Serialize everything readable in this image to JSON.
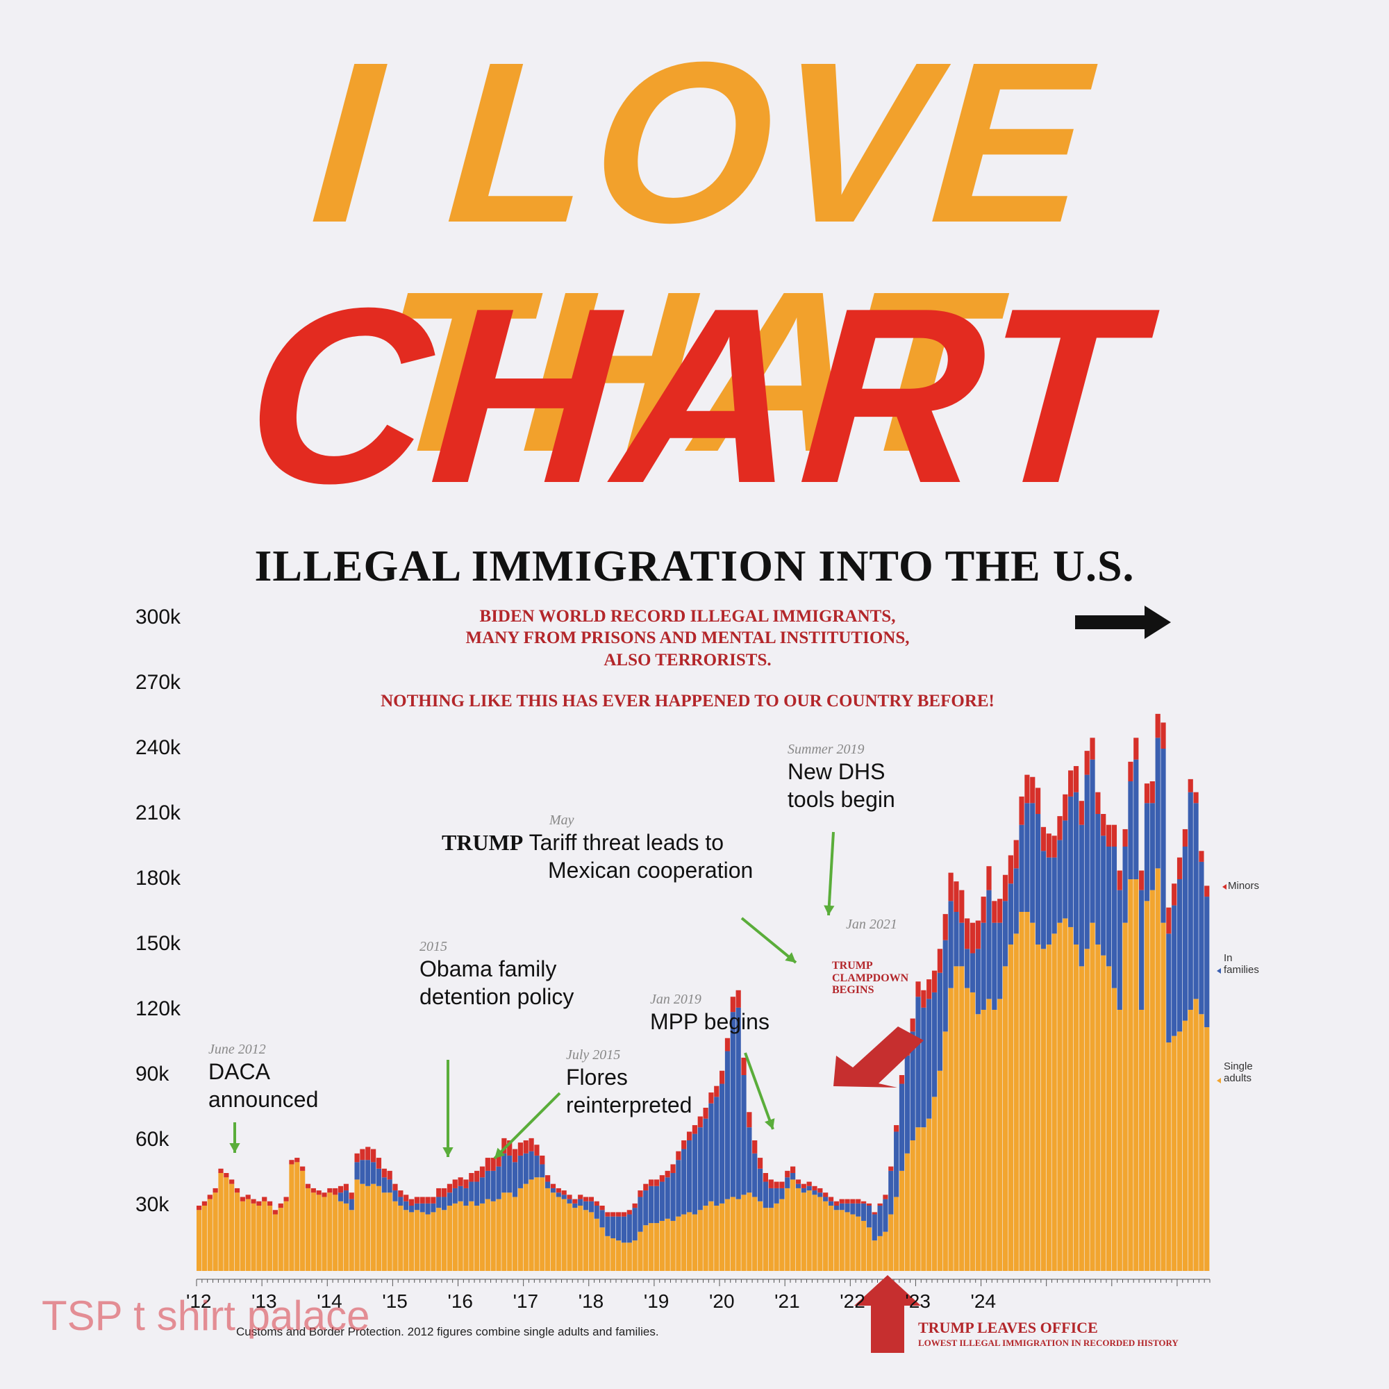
{
  "headline": {
    "line1": "I LOVE THAT",
    "line2": "CHART",
    "line1_color": "#f2a12c",
    "line2_color": "#e32b20"
  },
  "chart_title": "ILLEGAL IMMIGRATION INTO THE U.S.",
  "notes": {
    "biden_line1": "BIDEN WORLD RECORD ILLEGAL IMMIGRANTS,",
    "biden_line2": "MANY FROM PRISONS AND MENTAL INSTITUTIONS,",
    "biden_line3": "ALSO TERRORISTS.",
    "nothing_like": "NOTHING LIKE THIS HAS EVER HAPPENED TO OUR COUNTRY BEFORE!",
    "trump_clampdown_1": "TRUMP",
    "trump_clampdown_2": "CLAMPDOWN",
    "trump_clampdown_3": "BEGINS",
    "trump_leaves": "TRUMP LEAVES OFFICE",
    "lowest": "LOWEST ILLEGAL IMMIGRATION IN RECORDED HISTORY"
  },
  "annotations": {
    "daca_date": "June 2012",
    "daca_1": "DACA",
    "daca_2": "announced",
    "obama_date": "2015",
    "obama_1": "Obama family",
    "obama_2": "detention policy",
    "flores_date": "July 2015",
    "flores_1": "Flores",
    "flores_2": "reinterpreted",
    "mpp_date": "Jan 2019",
    "mpp_1": "MPP begins",
    "tariff_date": "May",
    "tariff_trump": "TRUMP",
    "tariff_1": "Tariff threat leads to",
    "tariff_2": "Mexican cooperation",
    "dhs_date": "Summer 2019",
    "dhs_1": "New DHS",
    "dhs_2": "tools begin",
    "jan2021": "Jan 2021"
  },
  "legend": {
    "minors": "Minors",
    "families_1": "In",
    "families_2": "families",
    "singles_1": "Single",
    "singles_2": "adults"
  },
  "source": "Customs and Border Protection. 2012 figures combine single adults and families.",
  "watermark": "TSP t shirt palace",
  "colors": {
    "single_adults": "#f2a52f",
    "families": "#3a5fb0",
    "minors": "#d6302a",
    "arrow_green": "#5aad3a",
    "arrow_red": "#c62f2f",
    "note_red": "#b3262a"
  },
  "chart_data": {
    "type": "bar",
    "stacked": true,
    "title": "ILLEGAL IMMIGRATION INTO THE U.S.",
    "ylim": [
      0,
      300000
    ],
    "yticks": [
      "30k",
      "60k",
      "90k",
      "120k",
      "150k",
      "180k",
      "210k",
      "240k",
      "270k",
      "300k"
    ],
    "xticks": [
      "'12",
      "'13",
      "'14",
      "'15",
      "'16",
      "'17",
      "'18",
      "'19",
      "'20",
      "'21",
      "'22",
      "'23",
      "'24"
    ],
    "x_start": "2012-01",
    "x_end": "2024-03",
    "series": [
      {
        "name": "Minors",
        "color": "#d6302a"
      },
      {
        "name": "In families",
        "color": "#3a5fb0"
      },
      {
        "name": "Single adults",
        "color": "#f2a52f"
      }
    ],
    "months_single_adults": [
      28000,
      30000,
      33000,
      36000,
      45000,
      43000,
      40000,
      36000,
      32000,
      33000,
      31000,
      30000,
      32000,
      30000,
      26000,
      29000,
      32000,
      49000,
      50000,
      46000,
      38000,
      36000,
      35000,
      34000,
      36000,
      35000,
      32000,
      31000,
      28000,
      42000,
      40000,
      39000,
      40000,
      39000,
      36000,
      36000,
      32000,
      30000,
      28000,
      27000,
      28000,
      27000,
      26000,
      27000,
      29000,
      28000,
      30000,
      31000,
      32000,
      30000,
      32000,
      30000,
      31000,
      33000,
      32000,
      33000,
      36000,
      36000,
      34000,
      38000,
      40000,
      42000,
      43000,
      43000,
      38000,
      36000,
      34000,
      33000,
      31000,
      29000,
      30000,
      28000,
      27000,
      24000,
      20000,
      16000,
      15000,
      14000,
      13000,
      13000,
      14000,
      18000,
      21000,
      22000,
      22000,
      23000,
      24000,
      23000,
      25000,
      26000,
      27000,
      26000,
      28000,
      30000,
      32000,
      30000,
      31000,
      33000,
      34000,
      33000,
      35000,
      36000,
      34000,
      32000,
      29000,
      29000,
      31000,
      33000,
      38000,
      42000,
      38000,
      36000,
      37000,
      35000,
      34000,
      32000,
      30000,
      28000,
      28000,
      27000,
      26000,
      25000,
      23000,
      20000,
      14000,
      16000,
      18000,
      26000,
      34000,
      46000,
      54000,
      60000,
      66000,
      66000,
      70000,
      80000,
      92000,
      110000,
      130000,
      140000,
      140000,
      130000,
      128000,
      118000,
      120000,
      125000,
      120000,
      125000,
      140000,
      150000,
      155000,
      165000,
      165000,
      160000,
      150000,
      148000,
      150000,
      155000,
      160000,
      162000,
      158000,
      150000,
      140000,
      148000,
      160000,
      150000,
      145000,
      140000,
      130000,
      120000,
      160000,
      180000,
      180000,
      120000,
      170000,
      175000,
      185000,
      160000,
      105000,
      108000,
      110000,
      115000,
      120000,
      125000,
      118000,
      112000
    ],
    "months_families": [
      0,
      0,
      0,
      0,
      0,
      0,
      0,
      0,
      0,
      0,
      0,
      0,
      0,
      0,
      0,
      0,
      0,
      0,
      0,
      0,
      0,
      0,
      0,
      0,
      0,
      0,
      4000,
      6000,
      5000,
      8000,
      11000,
      12000,
      10000,
      8000,
      7000,
      6000,
      5000,
      4000,
      4000,
      3000,
      3000,
      4000,
      5000,
      4000,
      5000,
      6000,
      6000,
      7000,
      7000,
      8000,
      9000,
      11000,
      12000,
      13000,
      14000,
      15000,
      18000,
      17000,
      16000,
      15000,
      14000,
      13000,
      10000,
      6000,
      3000,
      2000,
      2000,
      2000,
      2000,
      2000,
      3000,
      4000,
      5000,
      6000,
      8000,
      9000,
      10000,
      11000,
      12000,
      13000,
      15000,
      16000,
      16000,
      17000,
      17000,
      18000,
      19000,
      22000,
      26000,
      30000,
      33000,
      37000,
      38000,
      40000,
      45000,
      50000,
      55000,
      68000,
      85000,
      88000,
      55000,
      30000,
      20000,
      15000,
      12000,
      9000,
      7000,
      5000,
      5000,
      3000,
      2000,
      2000,
      2000,
      2000,
      2000,
      2000,
      2000,
      2000,
      3000,
      4000,
      5000,
      6000,
      8000,
      10000,
      12000,
      14000,
      15000,
      20000,
      30000,
      40000,
      45000,
      50000,
      60000,
      55000,
      55000,
      48000,
      45000,
      42000,
      40000,
      25000,
      20000,
      18000,
      18000,
      30000,
      40000,
      50000,
      40000,
      35000,
      30000,
      28000,
      30000,
      40000,
      50000,
      55000,
      60000,
      45000,
      40000,
      35000,
      38000,
      45000,
      60000,
      70000,
      65000,
      80000,
      75000,
      60000,
      55000,
      55000,
      65000,
      55000,
      35000,
      45000,
      55000,
      55000,
      45000,
      40000,
      60000,
      80000,
      50000,
      60000,
      70000,
      80000,
      100000,
      90000,
      70000,
      60000,
      55000,
      50000,
      48000,
      45000,
      40000
    ],
    "months_minors": [
      2000,
      2000,
      2000,
      2000,
      2000,
      2000,
      2000,
      2000,
      2000,
      2000,
      2000,
      2000,
      2000,
      2000,
      2000,
      2000,
      2000,
      2000,
      2000,
      2000,
      2000,
      2000,
      2000,
      2000,
      2000,
      3000,
      3000,
      3000,
      3000,
      4000,
      5000,
      6000,
      6000,
      5000,
      4000,
      4000,
      3000,
      3000,
      3000,
      3000,
      3000,
      3000,
      3000,
      3000,
      4000,
      4000,
      4000,
      4000,
      4000,
      4000,
      4000,
      5000,
      5000,
      6000,
      6000,
      6000,
      7000,
      7000,
      6000,
      6000,
      6000,
      6000,
      5000,
      4000,
      3000,
      2000,
      2000,
      2000,
      2000,
      2000,
      2000,
      2000,
      2000,
      2000,
      2000,
      2000,
      2000,
      2000,
      2000,
      2000,
      2000,
      3000,
      3000,
      3000,
      3000,
      3000,
      3000,
      4000,
      4000,
      4000,
      4000,
      4000,
      5000,
      5000,
      5000,
      5000,
      6000,
      6000,
      7000,
      8000,
      8000,
      7000,
      6000,
      5000,
      4000,
      4000,
      3000,
      3000,
      3000,
      3000,
      2000,
      2000,
      2000,
      2000,
      2000,
      2000,
      2000,
      2000,
      2000,
      2000,
      2000,
      2000,
      1000,
      1000,
      1000,
      1000,
      2000,
      2000,
      3000,
      4000,
      5000,
      6000,
      7000,
      8000,
      9000,
      10000,
      11000,
      12000,
      13000,
      14000,
      15000,
      14000,
      14000,
      13000,
      12000,
      11000,
      10000,
      11000,
      12000,
      13000,
      13000,
      13000,
      13000,
      12000,
      12000,
      11000,
      11000,
      10000,
      11000,
      12000,
      12000,
      12000,
      11000,
      11000,
      10000,
      10000,
      10000,
      10000,
      10000,
      9000,
      8000,
      9000,
      10000,
      9000,
      9000,
      10000,
      11000,
      12000,
      12000,
      10000,
      10000,
      8000,
      6000,
      5000,
      5000,
      5000,
      5000
    ]
  }
}
